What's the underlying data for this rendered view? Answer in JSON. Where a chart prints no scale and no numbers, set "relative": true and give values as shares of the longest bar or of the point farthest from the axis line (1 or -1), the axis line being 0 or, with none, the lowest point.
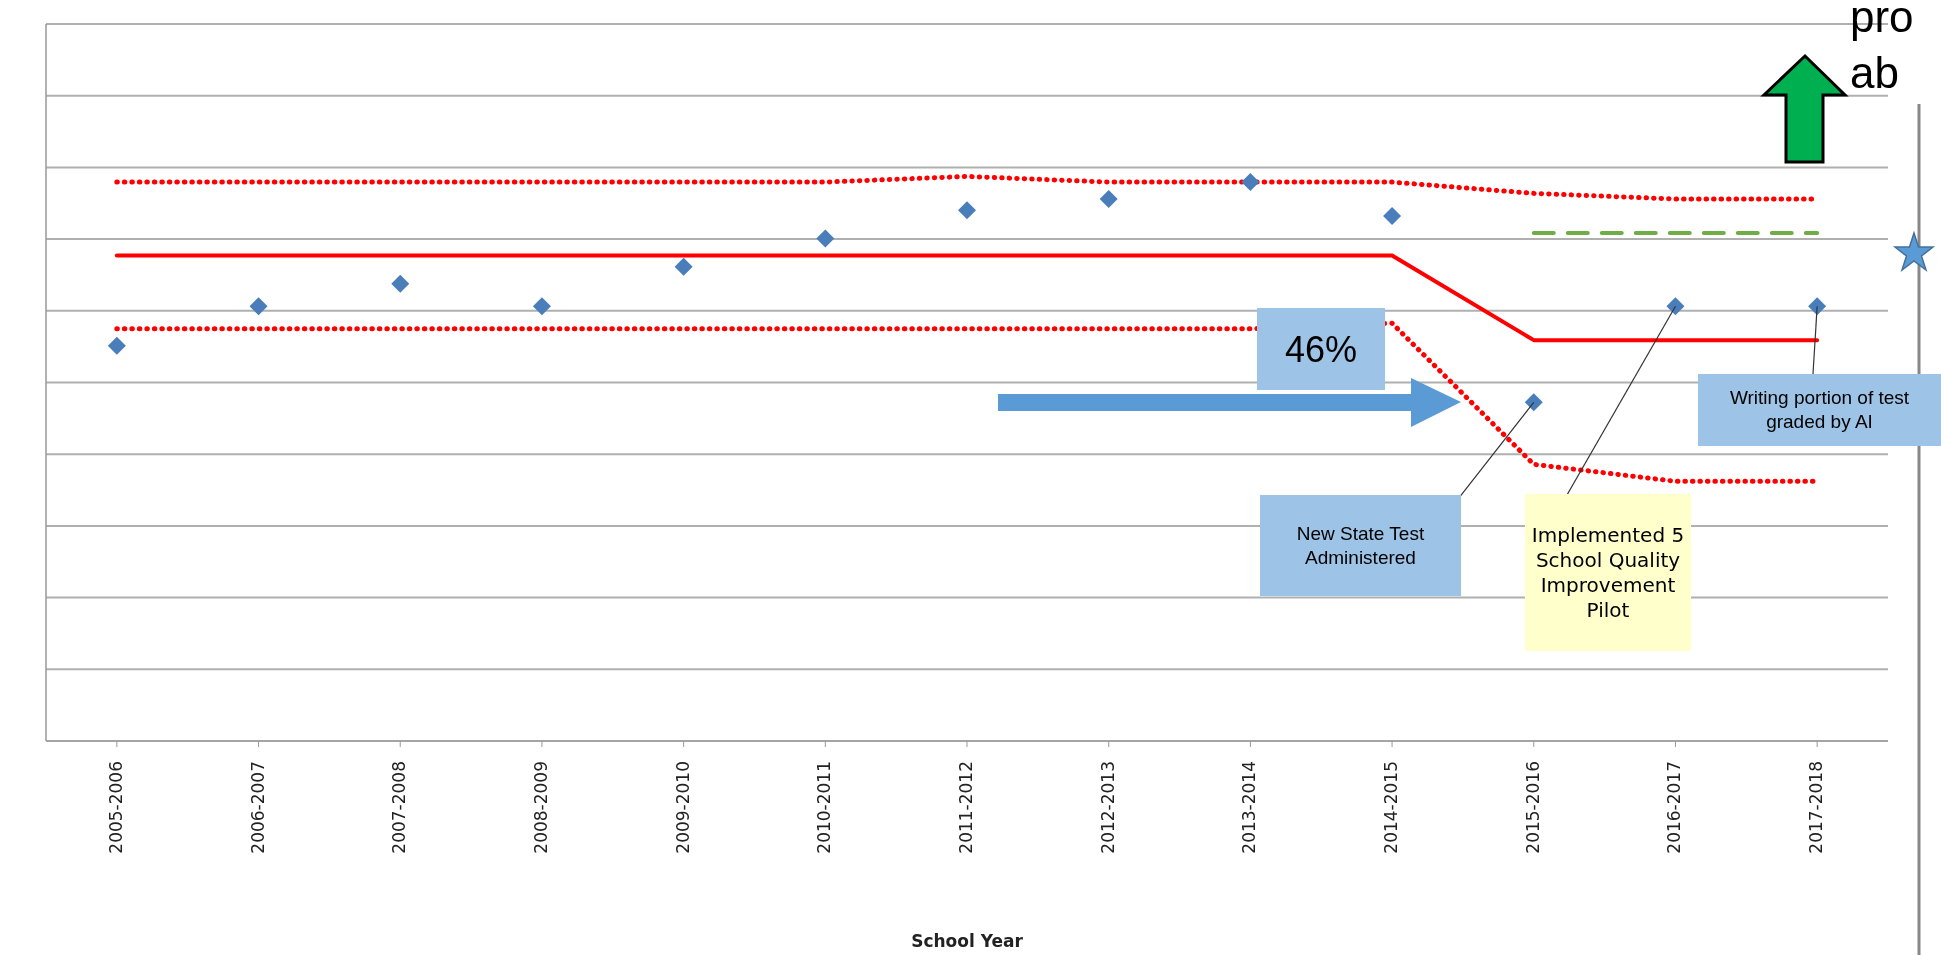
{
  "chart_data": {
    "type": "scatter",
    "relative": true,
    "xlabel": "School Year",
    "grid": "y",
    "legend": false,
    "categories": [
      "2005-2006",
      "2006-2007",
      "2007-2008",
      "2008-2009",
      "2009-2010",
      "2010-2011",
      "2011-2012",
      "2012-2013",
      "2013-2014",
      "2014-2015",
      "2015-2016",
      "2016-2017",
      "2017-2018"
    ],
    "series": [
      {
        "type": "line",
        "color": "#ff0000",
        "line_style": "dotted",
        "values": [
          0.99,
          0.99,
          0.99,
          0.99,
          0.99,
          0.99,
          1.0,
          0.99,
          0.99,
          0.99,
          0.97,
          0.96,
          0.96
        ]
      },
      {
        "type": "line",
        "color": "#ff0000",
        "line_style": "solid",
        "values": [
          0.86,
          0.86,
          0.86,
          0.86,
          0.86,
          0.86,
          0.86,
          0.86,
          0.86,
          0.86,
          0.71,
          0.71,
          0.71
        ]
      },
      {
        "type": "line",
        "color": "#ff0000",
        "line_style": "dotted",
        "values": [
          0.73,
          0.73,
          0.73,
          0.73,
          0.73,
          0.73,
          0.73,
          0.73,
          0.73,
          0.74,
          0.49,
          0.46,
          0.46
        ]
      },
      {
        "type": "line",
        "color": "#70ad47",
        "line_style": "dashed",
        "values": [
          null,
          null,
          null,
          null,
          null,
          null,
          null,
          null,
          null,
          null,
          0.9,
          0.9,
          0.9
        ]
      },
      {
        "type": "scatter",
        "color": "#4a7ebb",
        "marker": "diamond",
        "values": [
          0.7,
          0.77,
          0.81,
          0.77,
          0.84,
          0.89,
          0.94,
          0.96,
          0.99,
          0.93,
          0.6,
          0.77,
          0.77
        ]
      }
    ],
    "annotations": [
      "46%",
      {
        "text": "New State Test Administered",
        "x": "2015-2016",
        "y": 0.6
      },
      {
        "text": "Implemented 5 School Quality Improvement Pilot",
        "x": "2016-2017",
        "y": 0.77
      },
      {
        "text": "Writing portion of test graded by AI",
        "x": "2017-2018",
        "y": 0.77
      },
      "pro",
      "ab"
    ]
  }
}
